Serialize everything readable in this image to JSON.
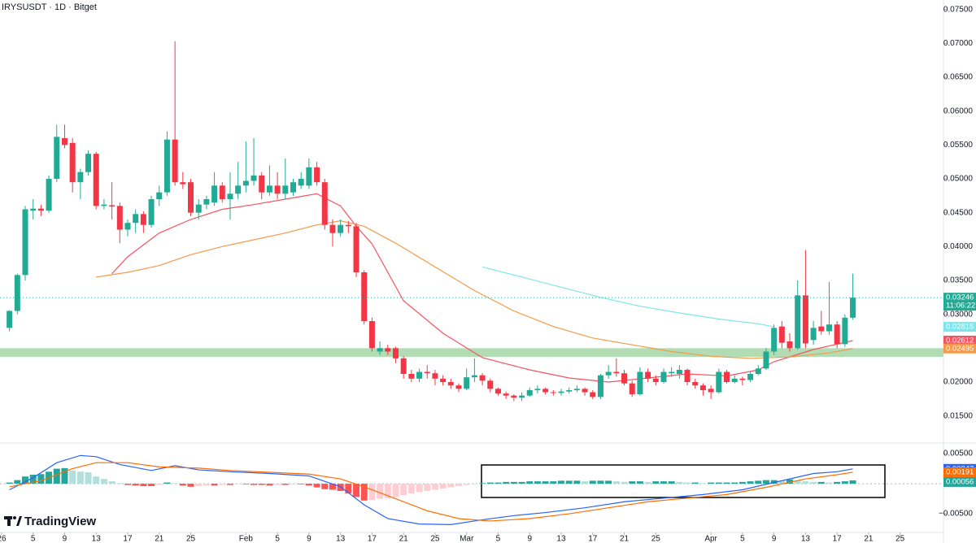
{
  "chart_data": [
    {
      "type": "candlestick",
      "title": "IRYSUSDT · 1D · Bitget",
      "countdown": "11:06:22",
      "x": [
        1,
        2,
        3,
        4,
        5,
        6,
        7,
        8,
        9,
        10,
        11,
        12,
        13,
        14,
        15,
        16,
        17,
        18,
        19,
        20,
        21,
        22,
        23,
        24,
        25,
        26,
        27,
        28,
        29,
        30,
        31,
        32,
        33,
        34,
        35,
        36,
        37,
        38,
        39,
        40,
        41,
        42,
        43,
        44,
        45,
        46,
        47,
        48,
        49,
        50,
        51,
        52,
        53,
        54,
        55,
        56,
        57,
        58,
        59,
        60,
        61,
        62,
        63,
        64,
        65,
        66,
        67,
        68,
        69,
        70,
        71,
        72,
        73,
        74,
        75,
        76,
        77,
        78,
        79,
        80,
        81,
        82,
        83,
        84,
        85,
        86,
        87,
        88,
        89,
        90,
        91,
        92,
        93,
        94,
        95,
        96,
        97,
        98,
        99,
        100,
        101,
        102,
        103,
        104,
        105,
        106,
        107,
        108
      ],
      "open": [
        0.028,
        0.0305,
        0.0358,
        0.0453,
        0.0456,
        0.0453,
        0.05,
        0.056,
        0.0553,
        0.0495,
        0.051,
        0.0537,
        0.046,
        0.0461,
        0.046,
        0.0425,
        0.0435,
        0.0448,
        0.0432,
        0.047,
        0.048,
        0.0558,
        0.0495,
        0.0495,
        0.045,
        0.0462,
        0.0465,
        0.049,
        0.047,
        0.0478,
        0.049,
        0.0497,
        0.0505,
        0.048,
        0.049,
        0.0478,
        0.048,
        0.049,
        0.049,
        0.0517,
        0.0495,
        0.0432,
        0.042,
        0.0432,
        0.043,
        0.0362,
        0.029,
        0.0245,
        0.025,
        0.025,
        0.0235,
        0.0212,
        0.0205,
        0.0215,
        0.0213,
        0.0205,
        0.02,
        0.0195,
        0.019,
        0.0207,
        0.021,
        0.0202,
        0.019,
        0.0183,
        0.018,
        0.0177,
        0.018,
        0.0188,
        0.019,
        0.0185,
        0.0184,
        0.0186,
        0.0188,
        0.019,
        0.0185,
        0.0178,
        0.021,
        0.0215,
        0.0213,
        0.0198,
        0.0182,
        0.0215,
        0.0205,
        0.02,
        0.0213,
        0.0212,
        0.0218,
        0.02,
        0.0195,
        0.019,
        0.0185,
        0.0215,
        0.02,
        0.0205,
        0.0203,
        0.0212,
        0.022,
        0.0245,
        0.0282,
        0.026,
        0.025,
        0.0328,
        0.0262,
        0.0282,
        0.0275,
        0.0285,
        0.0256,
        0.0295
      ],
      "high": [
        0.0306,
        0.036,
        0.046,
        0.047,
        0.0462,
        0.0505,
        0.058,
        0.058,
        0.056,
        0.0515,
        0.0542,
        0.054,
        0.047,
        0.0495,
        0.0465,
        0.044,
        0.0455,
        0.0452,
        0.0475,
        0.049,
        0.057,
        0.0703,
        0.051,
        0.05,
        0.047,
        0.0475,
        0.051,
        0.0495,
        0.051,
        0.0525,
        0.0555,
        0.056,
        0.051,
        0.052,
        0.051,
        0.053,
        0.05,
        0.051,
        0.053,
        0.0525,
        0.05,
        0.044,
        0.044,
        0.0438,
        0.0435,
        0.0365,
        0.0295,
        0.026,
        0.0255,
        0.0252,
        0.0238,
        0.0218,
        0.022,
        0.0225,
        0.0218,
        0.021,
        0.0205,
        0.0198,
        0.022,
        0.0235,
        0.0213,
        0.0205,
        0.0192,
        0.0186,
        0.0182,
        0.0185,
        0.0192,
        0.0195,
        0.0192,
        0.0188,
        0.019,
        0.0192,
        0.0195,
        0.0192,
        0.0188,
        0.0212,
        0.0225,
        0.0235,
        0.0218,
        0.0202,
        0.0222,
        0.022,
        0.021,
        0.022,
        0.0222,
        0.0225,
        0.022,
        0.0205,
        0.0198,
        0.0195,
        0.022,
        0.0218,
        0.021,
        0.0208,
        0.0215,
        0.0225,
        0.025,
        0.0285,
        0.029,
        0.0272,
        0.035,
        0.0395,
        0.029,
        0.0305,
        0.0348,
        0.029,
        0.03,
        0.036
      ],
      "low": [
        0.0275,
        0.03,
        0.035,
        0.044,
        0.0445,
        0.045,
        0.0495,
        0.0545,
        0.048,
        0.047,
        0.0505,
        0.0455,
        0.0455,
        0.044,
        0.0405,
        0.0415,
        0.042,
        0.042,
        0.0428,
        0.046,
        0.0475,
        0.049,
        0.0485,
        0.0445,
        0.044,
        0.0455,
        0.046,
        0.0465,
        0.044,
        0.047,
        0.048,
        0.049,
        0.047,
        0.0475,
        0.047,
        0.047,
        0.0475,
        0.0485,
        0.0485,
        0.049,
        0.0425,
        0.04,
        0.0415,
        0.042,
        0.0355,
        0.0285,
        0.0245,
        0.024,
        0.024,
        0.0228,
        0.0205,
        0.02,
        0.02,
        0.0205,
        0.0195,
        0.0195,
        0.019,
        0.0185,
        0.0188,
        0.02,
        0.0195,
        0.0185,
        0.018,
        0.0175,
        0.0172,
        0.0172,
        0.0178,
        0.0183,
        0.0182,
        0.018,
        0.018,
        0.0183,
        0.0185,
        0.018,
        0.0175,
        0.0175,
        0.0205,
        0.0208,
        0.0195,
        0.0178,
        0.018,
        0.02,
        0.0195,
        0.0198,
        0.0208,
        0.0205,
        0.0195,
        0.019,
        0.018,
        0.0175,
        0.0183,
        0.0198,
        0.0198,
        0.0195,
        0.02,
        0.021,
        0.0218,
        0.024,
        0.025,
        0.0245,
        0.0248,
        0.025,
        0.0255,
        0.027,
        0.027,
        0.025,
        0.0252,
        0.0292
      ],
      "close": [
        0.0305,
        0.0358,
        0.0455,
        0.0456,
        0.0453,
        0.05,
        0.0562,
        0.055,
        0.0495,
        0.051,
        0.0537,
        0.046,
        0.0462,
        0.0459,
        0.0425,
        0.0435,
        0.0448,
        0.0432,
        0.047,
        0.048,
        0.0558,
        0.0495,
        0.0492,
        0.045,
        0.0462,
        0.047,
        0.049,
        0.047,
        0.0478,
        0.049,
        0.0497,
        0.0505,
        0.048,
        0.049,
        0.0478,
        0.049,
        0.0495,
        0.05,
        0.0517,
        0.0495,
        0.0432,
        0.042,
        0.0432,
        0.043,
        0.0362,
        0.029,
        0.025,
        0.025,
        0.0245,
        0.0235,
        0.0212,
        0.0205,
        0.0215,
        0.0213,
        0.0205,
        0.02,
        0.0195,
        0.019,
        0.0207,
        0.021,
        0.0202,
        0.019,
        0.0183,
        0.018,
        0.0177,
        0.018,
        0.0188,
        0.019,
        0.0185,
        0.0184,
        0.0186,
        0.0188,
        0.019,
        0.0185,
        0.0178,
        0.021,
        0.0215,
        0.0213,
        0.0198,
        0.0182,
        0.0215,
        0.0205,
        0.02,
        0.0215,
        0.0215,
        0.0218,
        0.02,
        0.0195,
        0.0188,
        0.0185,
        0.0215,
        0.02,
        0.0205,
        0.0203,
        0.0212,
        0.022,
        0.0245,
        0.028,
        0.0258,
        0.025,
        0.0328,
        0.0257,
        0.028,
        0.0275,
        0.0285,
        0.0256,
        0.0295,
        0.03246
      ],
      "up_color": "#22ab94",
      "down_color": "#f23645",
      "lines": [
        {
          "color": "#f7525f",
          "x": [
            14,
            16,
            20,
            24,
            28,
            32,
            36,
            40,
            43,
            45,
            47,
            51,
            56,
            61,
            67,
            72,
            77,
            82,
            87,
            92,
            96,
            98,
            103,
            108
          ],
          "values": [
            0.036,
            0.0385,
            0.042,
            0.044,
            0.0455,
            0.0462,
            0.047,
            0.0478,
            0.046,
            0.043,
            0.0404,
            0.032,
            0.0272,
            0.0236,
            0.0218,
            0.0206,
            0.02,
            0.0206,
            0.0212,
            0.0209,
            0.0218,
            0.023,
            0.0248,
            0.02612
          ]
        },
        {
          "color": "#f59a4a",
          "x": [
            12,
            16,
            20,
            24,
            28,
            32,
            36,
            40,
            43,
            46,
            50,
            55,
            60,
            65,
            70,
            75,
            80,
            85,
            90,
            95,
            100,
            105,
            108
          ],
          "values": [
            0.0355,
            0.0362,
            0.0372,
            0.0388,
            0.04,
            0.041,
            0.042,
            0.0432,
            0.0438,
            0.043,
            0.0405,
            0.037,
            0.0335,
            0.0305,
            0.0282,
            0.0265,
            0.0255,
            0.0245,
            0.0238,
            0.0235,
            0.0237,
            0.0243,
            0.02495
          ]
        },
        {
          "color": "#7de6ec",
          "x": [
            61,
            66,
            71,
            76,
            81,
            86,
            91,
            96,
            98
          ],
          "values": [
            0.037,
            0.0355,
            0.034,
            0.0325,
            0.0312,
            0.0302,
            0.0293,
            0.0286,
            0.02815
          ]
        }
      ],
      "zone": [
        0.0237,
        0.025
      ],
      "zone_color": "#a5d6a7",
      "xlim": [
        -0.2,
        119.5
      ],
      "xticks": [
        {
          "value": 0,
          "label": "26"
        },
        {
          "value": 4,
          "label": "5"
        },
        {
          "value": 8,
          "label": "9"
        },
        {
          "value": 12,
          "label": "13"
        },
        {
          "value": 16,
          "label": "17"
        },
        {
          "value": 20,
          "label": "21"
        },
        {
          "value": 24,
          "label": "25"
        },
        {
          "value": 31,
          "label": "Feb"
        },
        {
          "value": 35,
          "label": "5"
        },
        {
          "value": 39,
          "label": "9"
        },
        {
          "value": 43,
          "label": "13"
        },
        {
          "value": 47,
          "label": "17"
        },
        {
          "value": 51,
          "label": "21"
        },
        {
          "value": 55,
          "label": "25"
        },
        {
          "value": 59,
          "label": "Mar"
        },
        {
          "value": 63,
          "label": "5"
        },
        {
          "value": 67,
          "label": "9"
        },
        {
          "value": 71,
          "label": "13"
        },
        {
          "value": 75,
          "label": "17"
        },
        {
          "value": 79,
          "label": "21"
        },
        {
          "value": 83,
          "label": "25"
        },
        {
          "value": 90,
          "label": "Apr"
        },
        {
          "value": 94,
          "label": "5"
        },
        {
          "value": 98,
          "label": "9"
        },
        {
          "value": 102,
          "label": "13"
        },
        {
          "value": 106,
          "label": "17"
        },
        {
          "value": 110,
          "label": "21"
        },
        {
          "value": 114,
          "label": "25"
        }
      ],
      "ylim": [
        0.011,
        0.0764
      ],
      "yticks": [
        {
          "value": 0.075,
          "label": "0.07500"
        },
        {
          "value": 0.07,
          "label": "0.07000"
        },
        {
          "value": 0.065,
          "label": "0.06500"
        },
        {
          "value": 0.06,
          "label": "0.06000"
        },
        {
          "value": 0.055,
          "label": "0.05500"
        },
        {
          "value": 0.05,
          "label": "0.05000"
        },
        {
          "value": 0.045,
          "label": "0.04500"
        },
        {
          "value": 0.04,
          "label": "0.04000"
        },
        {
          "value": 0.035,
          "label": "0.03500"
        },
        {
          "value": 0.03,
          "label": "0.03000"
        },
        {
          "value": 0.025,
          "label": "0.02500"
        },
        {
          "value": 0.02,
          "label": "0.02000"
        },
        {
          "value": 0.015,
          "label": "0.01500"
        }
      ]
    },
    {
      "type": "macd",
      "brand": "TradingView",
      "histogram": [
        0.0002,
        0.0006,
        0.0012,
        0.0015,
        0.0016,
        0.002,
        0.0025,
        0.0026,
        0.0022,
        0.002,
        0.0019,
        0.0012,
        0.0008,
        0.0004,
        0.0001,
        -0.0002,
        -0.0003,
        -0.0004,
        -0.0004,
        -0.0002,
        0.0002,
        0.0001,
        -0.0003,
        -0.0005,
        -0.0004,
        -0.0003,
        -0.0003,
        -0.0002,
        -0.0002,
        -0.0001,
        -0.0001,
        -0.0002,
        -0.0002,
        -0.0003,
        -0.0002,
        -0.0002,
        -0.0001,
        -0.0001,
        -0.0003,
        -0.0006,
        -0.0009,
        -0.001,
        -0.0012,
        -0.0016,
        -0.0022,
        -0.0028,
        -0.0027,
        -0.0025,
        -0.0024,
        -0.0022,
        -0.0019,
        -0.0016,
        -0.0014,
        -0.0012,
        -0.001,
        -0.0008,
        -0.0006,
        -0.0004,
        -0.0002,
        -0.0001,
        0.0001,
        0.0002,
        0.0002,
        0.0003,
        0.0003,
        0.0003,
        0.0004,
        0.0004,
        0.0004,
        0.0004,
        0.0005,
        0.0005,
        0.0005,
        0.0004,
        0.0005,
        0.0005,
        0.0005,
        0.0004,
        0.0003,
        0.0004,
        0.0004,
        0.0003,
        0.0004,
        0.0004,
        0.0004,
        0.0003,
        0.0002,
        0.0002,
        0.0001,
        0.0002,
        0.0002,
        0.0002,
        0.0002,
        0.0003,
        0.0004,
        0.0005,
        0.0006,
        0.0006,
        0.0005,
        0.0007,
        0.0005,
        0.0004,
        0.0003,
        0.0003,
        0.0002,
        0.0003,
        0.0004,
        0.00056
      ],
      "histogram_colors": [
        "#26a69a",
        "#b2dfdb",
        "#ff5252",
        "#ffcdd2"
      ],
      "lines": [
        {
          "color": "#2962ff",
          "x": [
            1,
            4,
            7,
            10,
            12,
            15,
            19,
            22,
            25,
            29,
            34,
            39,
            43,
            46,
            49,
            53,
            57,
            61,
            65,
            69,
            74,
            79,
            84,
            89,
            94,
            99,
            103,
            106,
            108
          ],
          "values": [
            -0.001,
            0.001,
            0.0035,
            0.0047,
            0.0045,
            0.0032,
            0.0022,
            0.003,
            0.0023,
            0.002,
            0.0017,
            0.0013,
            -0.0005,
            -0.0035,
            -0.0058,
            -0.0067,
            -0.0068,
            -0.006,
            -0.0053,
            -0.0048,
            -0.004,
            -0.003,
            -0.0024,
            -0.0018,
            -0.001,
            0.0005,
            0.0017,
            0.002,
            0.00247
          ]
        },
        {
          "color": "#ff6d00",
          "x": [
            1,
            5,
            9,
            12,
            16,
            20,
            25,
            29,
            34,
            39,
            43,
            46,
            50,
            54,
            58,
            62,
            67,
            72,
            77,
            82,
            87,
            92,
            97,
            102,
            106,
            108
          ],
          "values": [
            -0.0005,
            0.0005,
            0.0025,
            0.0035,
            0.0035,
            0.0028,
            0.0026,
            0.0022,
            0.0019,
            0.0016,
            0.0008,
            -0.0005,
            -0.0025,
            -0.0045,
            -0.0058,
            -0.0062,
            -0.0058,
            -0.005,
            -0.004,
            -0.003,
            -0.0024,
            -0.0018,
            -0.0006,
            0.0008,
            0.0015,
            0.00191
          ]
        }
      ],
      "ylim": [
        -0.0081,
        0.0065
      ],
      "yticks": [
        {
          "value": 0.005,
          "label": "0.00500"
        },
        {
          "value": -0.005,
          "label": "−0.00500"
        }
      ]
    }
  ]
}
